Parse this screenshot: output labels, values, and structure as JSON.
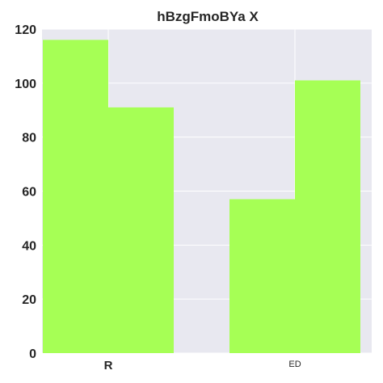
{
  "chart_data": {
    "type": "bar",
    "title": "hBzgFmoBYa X",
    "xlabel": "",
    "ylabel": "",
    "categories": [
      "R",
      "ED"
    ],
    "series": [
      {
        "values": [
          116,
          57
        ]
      },
      {
        "values": [
          91,
          101
        ]
      }
    ],
    "ylim": [
      0,
      120
    ],
    "yticks": [
      0,
      20,
      40,
      60,
      80,
      100,
      120
    ],
    "grid": true,
    "legend": "none",
    "colors": {
      "bar": "#a6ff55",
      "plot_background": "#e8e8f0",
      "grid": "#ffffff",
      "text": "#262626"
    }
  }
}
